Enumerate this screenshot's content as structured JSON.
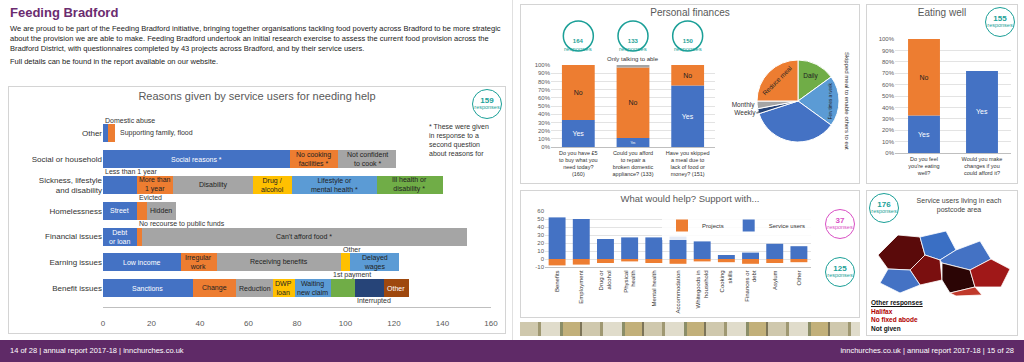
{
  "header": {
    "title": "Feeding Bradford",
    "paragraphs": [
      "We are proud to be part of the Feeding Bradford initiative, bringing together organisations tackling food poverty across Bradford to be more strategic about the provision we are able to make. Feeding Bradford undertook an initial research exercise to assess the current food provision across the Bradford District, with questionnaires completed by 43 projects across Bradford, and by their service users.",
      "Full details can be found in the report available on our website."
    ]
  },
  "chart_data": [
    {
      "type": "bar",
      "orientation": "horizontal",
      "stacked": true,
      "title": "Reasons given by service users for needing help",
      "badge": "159 responses",
      "note": "* These were given in response to a second question about reasons for",
      "categories": [
        "Other",
        "Social or household",
        "Sickness, lifestyle and disability",
        "Homelessness",
        "Financial issues",
        "Earning issues",
        "Benefit issues"
      ],
      "segments": [
        [
          {
            "label": "Domestic abuse",
            "value": 2
          },
          {
            "label": "Supporting family, flood",
            "value": 3
          }
        ],
        [
          {
            "label": "Social reasons *",
            "value": 77
          },
          {
            "label": "No cooking facilities *",
            "value": 20
          },
          {
            "label": "Not confident to cook *",
            "value": 24
          }
        ],
        [
          {
            "label": "Less than 1 year",
            "value": 14
          },
          {
            "label": "More than 1 year",
            "value": 15
          },
          {
            "label": "Disability",
            "value": 33
          },
          {
            "label": "Drug / alcohol",
            "value": 16
          },
          {
            "label": "Lifestyle or mental health *",
            "value": 35
          },
          {
            "label": "Ill health or disability *",
            "value": 27
          }
        ],
        [
          {
            "label": "Street",
            "value": 14
          },
          {
            "label": "Evicted",
            "value": 4
          },
          {
            "label": "Hidden",
            "value": 12
          }
        ],
        [
          {
            "label": "Debt or loan",
            "value": 14
          },
          {
            "label": "No recourse to public funds",
            "value": 2
          },
          {
            "label": "Can't afford food *",
            "value": 134
          }
        ],
        [
          {
            "label": "Low income",
            "value": 32
          },
          {
            "label": "Irregular work",
            "value": 15
          },
          {
            "label": "Receiving benefits",
            "value": 51
          },
          {
            "label": "Other",
            "value": 4
          },
          {
            "label": "Delayed wages",
            "value": 20
          }
        ],
        [
          {
            "label": "Sanctions",
            "value": 37
          },
          {
            "label": "Change",
            "value": 18
          },
          {
            "label": "Reduction",
            "value": 15
          },
          {
            "label": "DWP loan",
            "value": 9
          },
          {
            "label": "Waiting new claim",
            "value": 15
          },
          {
            "label": "1st payment",
            "value": 10
          },
          {
            "label": "Interrupted",
            "value": 12
          },
          {
            "label": "Other",
            "value": 10
          }
        ]
      ],
      "colors": [
        "#4472c4",
        "#ed7d31",
        "#a5a5a5",
        "#ffc000",
        "#5b9bd5",
        "#70ad47",
        "#264478",
        "#9e480e"
      ],
      "xlim": [
        0,
        160
      ],
      "xticks": [
        0,
        20,
        40,
        60,
        80,
        100,
        120,
        140,
        160
      ],
      "grid": false
    },
    {
      "type": "bar",
      "stacked": true,
      "title": "Personal finances",
      "badges": [
        "164 responses",
        "133 responses",
        "150 responses"
      ],
      "categories": [
        "Do you have £5 to buy what you need today? (160)",
        "Could you afford to repair a broken domestic appliance? (133)",
        "Have you skipped a meal due to lack of food or money? (151)"
      ],
      "series": [
        {
          "name": "Yes",
          "color": "#4472c4",
          "values": [
            33,
            11,
            75
          ]
        },
        {
          "name": "No",
          "color": "#ed7d31",
          "values": [
            67,
            86,
            25
          ]
        },
        {
          "name": "Only talking to able",
          "color": "#a5a5a5",
          "values": [
            null,
            3,
            null
          ]
        }
      ],
      "ylim": [
        0,
        100
      ],
      "yticks": [
        {
          "value": 0,
          "label": "0%"
        },
        {
          "value": 10,
          "label": "10%"
        },
        {
          "value": 20,
          "label": "20%"
        },
        {
          "value": 30,
          "label": "30%"
        },
        {
          "value": 40,
          "label": "40%"
        },
        {
          "value": 50,
          "label": "50%"
        },
        {
          "value": 60,
          "label": "60%"
        },
        {
          "value": 70,
          "label": "70%"
        },
        {
          "value": 80,
          "label": "80%"
        },
        {
          "value": 90,
          "label": "90%"
        },
        {
          "value": 100,
          "label": "100%"
        }
      ],
      "grid": true
    },
    {
      "type": "pie",
      "title": "Skipped meal to enable others to eat",
      "labels": [
        "Daily",
        "Few times a week",
        null,
        "Weekly",
        "Monthly",
        "Reduce meal"
      ],
      "values": [
        15,
        20,
        35,
        2,
        3,
        25
      ],
      "colors": [
        "#70ad47",
        "#5b9bd5",
        "#4472c4",
        "#264478",
        "#a5a5a5",
        "#ed7d31"
      ]
    },
    {
      "type": "bar",
      "stacked": true,
      "title": "Eating well",
      "badge": "155 responses",
      "categories": [
        "Do you feel you're eating well?",
        "Would you make changes if you could afford it?"
      ],
      "series": [
        {
          "name": "Yes",
          "color": "#4472c4",
          "values": [
            33,
            72
          ]
        },
        {
          "name": "No",
          "color": "#ed7d31",
          "values": [
            67,
            null
          ]
        }
      ],
      "ylim": [
        0,
        100
      ],
      "yticks": [
        {
          "value": 0,
          "label": "0%"
        },
        {
          "value": 10,
          "label": "10%"
        },
        {
          "value": 20,
          "label": "20%"
        },
        {
          "value": 30,
          "label": "30%"
        },
        {
          "value": 40,
          "label": "40%"
        },
        {
          "value": 50,
          "label": "50%"
        },
        {
          "value": 60,
          "label": "60%"
        },
        {
          "value": 70,
          "label": "70%"
        },
        {
          "value": 80,
          "label": "80%"
        },
        {
          "value": 90,
          "label": "90%"
        },
        {
          "value": 100,
          "label": "100%"
        }
      ],
      "grid": true
    },
    {
      "type": "bar",
      "stacked": true,
      "title": "What would help? Support with...",
      "badges": [
        "37 responses",
        "125 responses"
      ],
      "legend": "top right",
      "categories": [
        "Benefits",
        "Employment",
        "Drug or alcohol",
        "Physical health",
        "Mental health",
        "Accommodation",
        "Whitegoods in household",
        "Cooking skills",
        "Finances or debt",
        "Asylum",
        "Other"
      ],
      "series": [
        {
          "name": "Projects",
          "color": "#ed7d31",
          "values": [
            -8,
            -7,
            -5,
            -3,
            -5,
            -6,
            -3,
            -4,
            -6,
            -5,
            -4
          ]
        },
        {
          "name": "Service users",
          "color": "#4472c4",
          "values": [
            52,
            50,
            25,
            27,
            27,
            28,
            22,
            5,
            8,
            19,
            16
          ]
        }
      ],
      "ylim": [
        -10,
        60
      ],
      "yticks": [
        -10,
        0,
        10,
        20,
        30,
        40,
        50,
        60
      ],
      "grid": true
    }
  ],
  "map": {
    "title": "Service users living in each postcode area",
    "badge": "176 responses",
    "other_responses": {
      "title": "Other responses",
      "items": [
        "Halifax",
        "No fixed abode",
        "Not given"
      ]
    }
  },
  "footer": {
    "left": "14 of 28 | annual report 2017-18 | innchurches.co.uk",
    "right": "innchurches.co.uk | annual report 2017-18 | 15 of 28"
  }
}
